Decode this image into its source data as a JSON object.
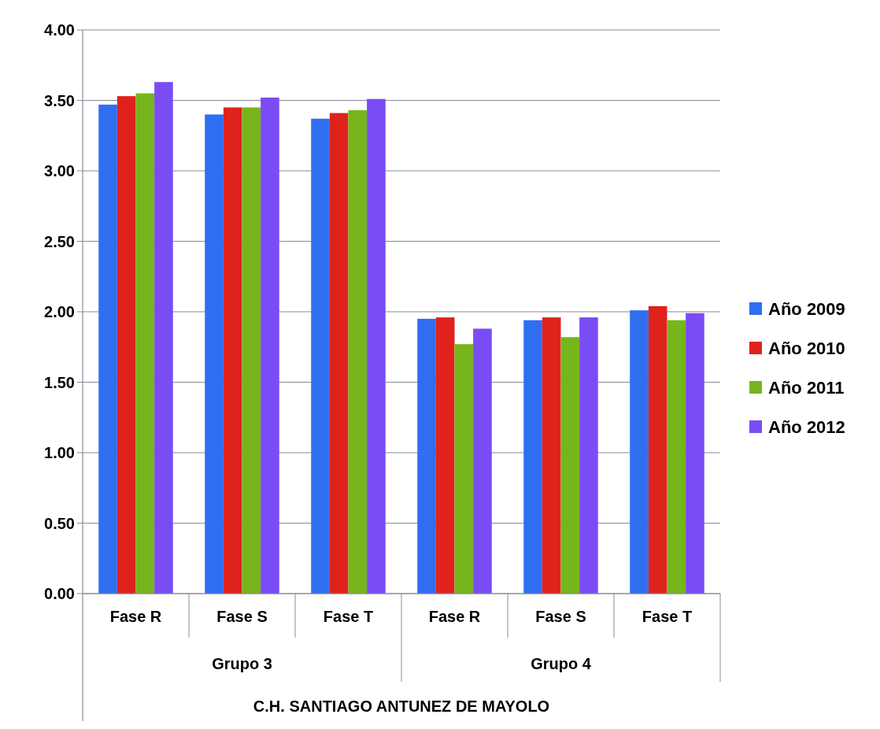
{
  "chart_data": {
    "type": "bar",
    "categories": [
      "Fase R",
      "Fase S",
      "Fase T",
      "Fase R",
      "Fase S",
      "Fase T"
    ],
    "series": [
      {
        "name": "Año 2009",
        "color": "#2f6ef0",
        "values": [
          3.47,
          3.4,
          3.37,
          1.95,
          1.94,
          2.01
        ]
      },
      {
        "name": "Año 2010",
        "color": "#e0221c",
        "values": [
          3.53,
          3.45,
          3.41,
          1.96,
          1.96,
          2.04
        ]
      },
      {
        "name": "Año 2011",
        "color": "#77b51c",
        "values": [
          3.55,
          3.45,
          3.43,
          1.77,
          1.82,
          1.94
        ]
      },
      {
        "name": "Año 2012",
        "color": "#7a4cf5",
        "values": [
          3.63,
          3.52,
          3.51,
          1.88,
          1.96,
          1.99
        ]
      }
    ],
    "annotations": [
      "Grupo 3",
      "Grupo 4"
    ],
    "xlabel": "C.H. SANTIAGO ANTUNEZ DE MAYOLO",
    "ylim": [
      0,
      4
    ],
    "yticks": [
      {
        "value": 0,
        "label": "0.00"
      },
      {
        "value": 0.5,
        "label": "0.50"
      },
      {
        "value": 1,
        "label": "1.00"
      },
      {
        "value": 1.5,
        "label": "1.50"
      },
      {
        "value": 2,
        "label": "2.00"
      },
      {
        "value": 2.5,
        "label": "2.50"
      },
      {
        "value": 3,
        "label": "3.00"
      },
      {
        "value": 3.5,
        "label": "3.50"
      },
      {
        "value": 4,
        "label": "4.00"
      }
    ],
    "grid": "y",
    "legend": "right"
  }
}
